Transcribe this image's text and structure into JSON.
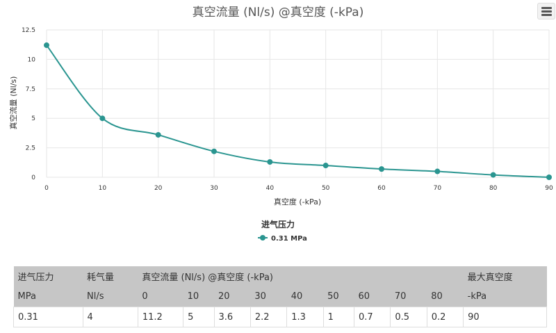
{
  "chart_data": {
    "type": "line",
    "title": "真空流量 (Nl/s) @真空度 (-kPa)",
    "xlabel": "真空度 (-kPa)",
    "ylabel": "真空流量 (Nl/s)",
    "x": [
      0,
      10,
      20,
      30,
      40,
      50,
      60,
      70,
      80,
      90
    ],
    "xlim": [
      0,
      90
    ],
    "ylim": [
      0,
      12.5
    ],
    "xticks": [
      "0",
      "10",
      "20",
      "30",
      "40",
      "50",
      "60",
      "70",
      "80",
      "90"
    ],
    "yticks": [
      "0",
      "2.5",
      "5",
      "7.5",
      "10",
      "12.5"
    ],
    "grid": true,
    "legend": {
      "title": "进气压力",
      "placement": "bottom-center"
    },
    "series": [
      {
        "name": "0.31 MPa",
        "color": "#2a9590",
        "values": [
          11.2,
          5.0,
          3.6,
          2.2,
          1.3,
          1.0,
          0.7,
          0.5,
          0.2,
          0.0
        ]
      }
    ]
  },
  "icons": {
    "menu": "hamburger-menu-icon"
  },
  "table": {
    "header_row_1": [
      "进气压力",
      "耗气量",
      "真空流量 (Nl/s) @真空度 (-kPa)",
      "最大真空度"
    ],
    "header_row_2": [
      "MPa",
      "Nl/s",
      "0",
      "10",
      "20",
      "30",
      "40",
      "50",
      "60",
      "70",
      "80",
      "-kPa"
    ],
    "values": [
      "0.31",
      "4",
      "11.2",
      "5",
      "3.6",
      "2.2",
      "1.3",
      "1",
      "0.7",
      "0.5",
      "0.2",
      "90"
    ]
  }
}
